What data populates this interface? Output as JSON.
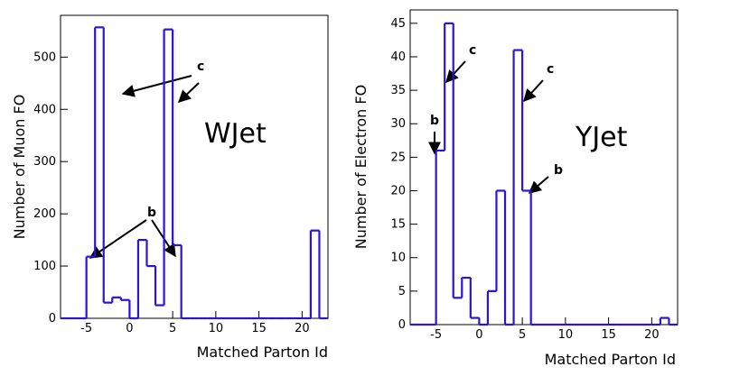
{
  "chart_data": [
    {
      "type": "histogram",
      "label": "WJet",
      "xlabel": "Matched Parton Id",
      "ylabel": "Number of Muon FO",
      "xlim": [
        -8,
        23
      ],
      "ylim": [
        0,
        580
      ],
      "xticks": [
        -5,
        0,
        5,
        10,
        15,
        20
      ],
      "yticks": [
        0,
        100,
        200,
        300,
        400,
        500
      ],
      "bin_edges": [
        -8,
        -7,
        -6,
        -5,
        -4,
        -3,
        -2,
        -1,
        0,
        1,
        2,
        3,
        4,
        5,
        6,
        7,
        8,
        9,
        10,
        11,
        12,
        13,
        14,
        15,
        16,
        17,
        18,
        19,
        20,
        21,
        22,
        23
      ],
      "values": [
        0,
        0,
        0,
        118,
        557,
        30,
        40,
        35,
        0,
        150,
        100,
        25,
        553,
        140,
        0,
        0,
        0,
        0,
        0,
        0,
        0,
        0,
        0,
        0,
        0,
        0,
        0,
        0,
        0,
        168,
        0
      ],
      "annotations": [
        {
          "text": "c",
          "points_to": "c"
        },
        {
          "text": "b",
          "points_to": "b"
        }
      ],
      "color": "#2e12d6"
    },
    {
      "type": "histogram",
      "label": "YJet",
      "xlabel": "Matched Parton Id",
      "ylabel": "Number of Electron FO",
      "xlim": [
        -8,
        23
      ],
      "ylim": [
        0,
        47
      ],
      "xticks": [
        -5,
        0,
        5,
        10,
        15,
        20
      ],
      "yticks": [
        0,
        5,
        10,
        15,
        20,
        25,
        30,
        35,
        40,
        45
      ],
      "bin_edges": [
        -8,
        -7,
        -6,
        -5,
        -4,
        -3,
        -2,
        -1,
        0,
        1,
        2,
        3,
        4,
        5,
        6,
        7,
        8,
        9,
        10,
        11,
        12,
        13,
        14,
        15,
        16,
        17,
        18,
        19,
        20,
        21,
        22,
        23
      ],
      "values": [
        0,
        0,
        0,
        26,
        45,
        4,
        7,
        1,
        0,
        5,
        20,
        0,
        41,
        20,
        0,
        0,
        0,
        0,
        0,
        0,
        0,
        0,
        0,
        0,
        0,
        0,
        0,
        0,
        0,
        1,
        0
      ],
      "annotations": [
        {
          "text": "c",
          "points_to": "c"
        },
        {
          "text": "c",
          "points_to": "c"
        },
        {
          "text": "b",
          "points_to": "b"
        },
        {
          "text": "b",
          "points_to": "b"
        }
      ],
      "color": "#2e12d6"
    }
  ]
}
